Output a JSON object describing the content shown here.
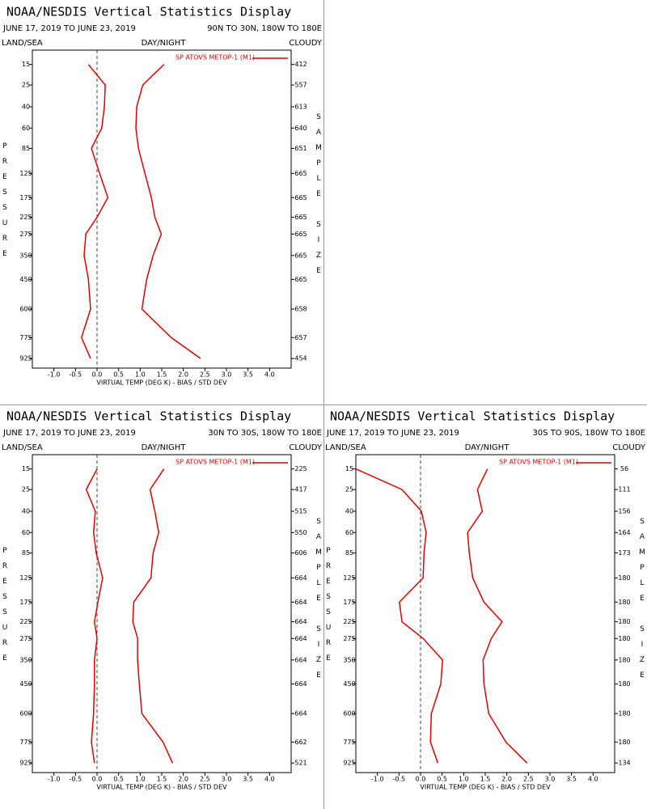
{
  "chart_data": [
    {
      "type": "line",
      "title": "NOAA/NESDIS Vertical Statistics Display",
      "date_range": "JUNE 17, 2019 TO JUNE 23, 2019",
      "region": "90N TO 30N, 180W TO 180E",
      "land_sea_label": "LAND/SEA",
      "day_night_label": "DAY/NIGHT",
      "cloudy_label": "CLOUDY",
      "ylabel": "PRESSURE",
      "y2label": "SAMPLE SIZE",
      "xlabel": "VIRTUAL TEMP (DEG K) - BIAS / STD DEV",
      "y": [
        15,
        25,
        40,
        60,
        85,
        125,
        175,
        225,
        275,
        350,
        450,
        600,
        775,
        925
      ],
      "sample_size": [
        412,
        557,
        613,
        640,
        651,
        665,
        665,
        665,
        665,
        665,
        665,
        658,
        657,
        454
      ],
      "series": [
        {
          "name": "SP ATOVS METOP-1 (M1)",
          "color": "#e00000",
          "bias": [
            -0.2,
            0.19,
            0.17,
            0.11,
            -0.13,
            0.06,
            0.25,
            0,
            -0.26,
            -0.3,
            -0.2,
            -0.15,
            -0.36,
            -0.15
          ],
          "std_dev": [
            1.55,
            1.06,
            0.92,
            0.9,
            0.96,
            1.11,
            1.26,
            1.34,
            1.49,
            1.3,
            1.15,
            1.04,
            1.72,
            2.4
          ]
        }
      ],
      "xlim": [
        -1.5,
        4.5
      ],
      "ylim": [
        10,
        1000
      ],
      "y_inverted": true,
      "xticks": [
        {
          "value": -1,
          "label": "-1.0"
        },
        -0.5,
        {
          "value": 0,
          "label": "0.0"
        },
        0.5,
        {
          "value": 1,
          "label": "1.0"
        },
        1.5,
        {
          "value": 2,
          "label": "2.0"
        },
        2.5,
        {
          "value": 3,
          "label": "3.0"
        },
        3.5,
        {
          "value": 4,
          "label": "4.0"
        }
      ],
      "yticks": [
        15,
        25,
        40,
        60,
        85,
        125,
        175,
        225,
        275,
        350,
        450,
        600,
        775,
        925
      ]
    },
    {
      "type": "line",
      "title": "NOAA/NESDIS Vertical Statistics Display",
      "date_range": "JUNE 17, 2019 TO JUNE 23, 2019",
      "region": "30N TO 30S, 180W TO 180E",
      "land_sea_label": "LAND/SEA",
      "day_night_label": "DAY/NIGHT",
      "cloudy_label": "CLOUDY",
      "ylabel": "PRESSURE",
      "y2label": "SAMPLE SIZE",
      "xlabel": "VIRTUAL TEMP (DEG K) - BIAS / STD DEV",
      "y": [
        15,
        25,
        40,
        60,
        85,
        125,
        175,
        225,
        275,
        350,
        450,
        600,
        775,
        925
      ],
      "sample_size": [
        225,
        417,
        515,
        550,
        606,
        664,
        664,
        664,
        664,
        664,
        664,
        664,
        662,
        521
      ],
      "series": [
        {
          "name": "SP ATOVS METOP-1 (M1)",
          "color": "#e00000",
          "bias": [
            0,
            -0.25,
            -0.04,
            -0.08,
            -0.02,
            0.13,
            0.02,
            -0.06,
            0,
            -0.06,
            -0.06,
            -0.08,
            -0.13,
            -0.06
          ],
          "std_dev": [
            1.55,
            1.23,
            1.34,
            1.43,
            1.3,
            1.25,
            0.85,
            0.83,
            0.94,
            0.94,
            0.98,
            1.04,
            1.53,
            1.75
          ]
        }
      ],
      "xlim": [
        -1.5,
        4.5
      ],
      "ylim": [
        10,
        1000
      ],
      "y_inverted": true,
      "xticks": [
        {
          "value": -1,
          "label": "-1.0"
        },
        -0.5,
        {
          "value": 0,
          "label": "0.0"
        },
        0.5,
        {
          "value": 1,
          "label": "1.0"
        },
        1.5,
        {
          "value": 2,
          "label": "2.0"
        },
        2.5,
        {
          "value": 3,
          "label": "3.0"
        },
        3.5,
        {
          "value": 4,
          "label": "4.0"
        }
      ],
      "yticks": [
        15,
        25,
        40,
        60,
        85,
        125,
        175,
        225,
        275,
        350,
        450,
        600,
        775,
        925
      ]
    },
    {
      "type": "line",
      "title": "NOAA/NESDIS Vertical Statistics Display",
      "date_range": "JUNE 17, 2019 TO JUNE 23, 2019",
      "region": "30S TO 90S, 180W TO 180E",
      "land_sea_label": "LAND/SEA",
      "day_night_label": "DAY/NIGHT",
      "cloudy_label": "CLOUDY",
      "ylabel": "PRESSURE",
      "y2label": "SAMPLE SIZE",
      "xlabel": "VIRTUAL TEMP (DEG K) - BIAS / STD DEV",
      "y": [
        15,
        25,
        40,
        60,
        85,
        125,
        175,
        225,
        275,
        350,
        450,
        600,
        775,
        925
      ],
      "sample_size": [
        56,
        111,
        156,
        164,
        173,
        180,
        180,
        180,
        180,
        180,
        180,
        180,
        180,
        134
      ],
      "series": [
        {
          "name": "SP ATOVS METOP-1 (M1)",
          "color": "#e00000",
          "bias": [
            -1.5,
            -0.43,
            0.02,
            0.13,
            0.08,
            0.06,
            -0.49,
            -0.43,
            0.06,
            0.51,
            0.47,
            0.25,
            0.23,
            0.4
          ],
          "std_dev": [
            1.55,
            1.32,
            1.43,
            1.09,
            1.13,
            1.21,
            1.47,
            1.89,
            1.64,
            1.45,
            1.47,
            1.58,
            1.98,
            2.47
          ]
        }
      ],
      "xlim": [
        -1.5,
        4.5
      ],
      "ylim": [
        10,
        1000
      ],
      "y_inverted": true,
      "xticks": [
        {
          "value": -1,
          "label": "-1.0"
        },
        -0.5,
        {
          "value": 0,
          "label": "0.0"
        },
        0.5,
        {
          "value": 1,
          "label": "1.0"
        },
        1.5,
        {
          "value": 2,
          "label": "2.0"
        },
        2.5,
        {
          "value": 3,
          "label": "3.0"
        },
        3.5,
        {
          "value": 4,
          "label": "4.0"
        }
      ],
      "yticks": [
        15,
        25,
        40,
        60,
        85,
        125,
        175,
        225,
        275,
        350,
        450,
        600,
        775,
        925
      ]
    }
  ]
}
